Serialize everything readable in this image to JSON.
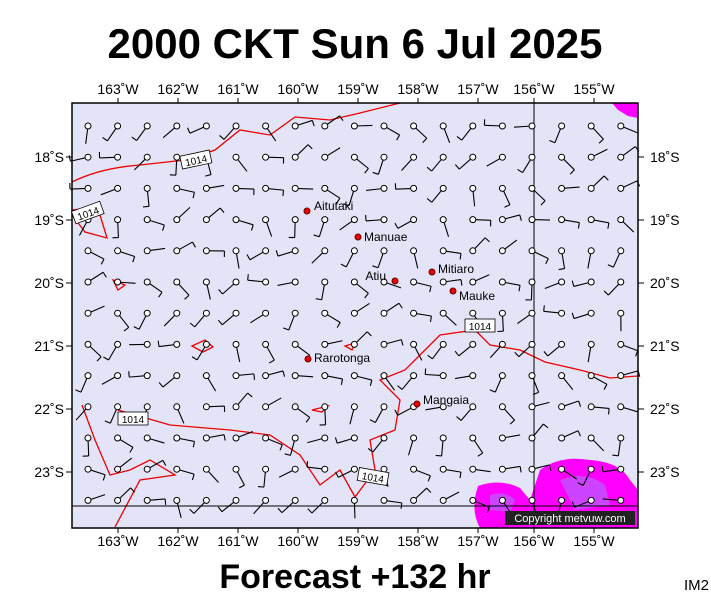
{
  "header": {
    "title": "2000 CKT Sun 6 Jul 2025"
  },
  "map": {
    "lon_labels": [
      "163˚W",
      "162˚W",
      "161˚W",
      "160˚W",
      "159˚W",
      "158˚W",
      "157˚W",
      "156˚W",
      "155˚W"
    ],
    "lat_labels": [
      "18˚S",
      "19˚S",
      "20˚S",
      "21˚S",
      "22˚S",
      "23˚S"
    ],
    "places": [
      "Aitutaki",
      "Manuae",
      "Atiu",
      "Mitiaro",
      "Mauke",
      "Rarotonga",
      "Mangaia"
    ],
    "isobar_labels": [
      "1014",
      "1014",
      "1014",
      "1014",
      "1014"
    ],
    "copyright": "Copyright metvuw.com"
  },
  "footer": {
    "caption": "Forecast +132 hr",
    "code": "IM2"
  }
}
